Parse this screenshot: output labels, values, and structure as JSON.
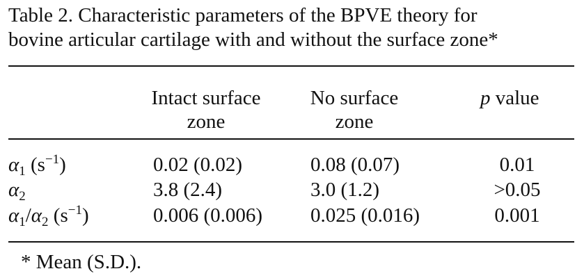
{
  "caption": {
    "line1": "Table 2. Characteristic parameters of the BPVE theory for",
    "line2": "bovine articular cartilage with and without the surface zone*"
  },
  "table": {
    "headers": {
      "intact_line1": "Intact surface",
      "intact_line2": "zone",
      "nosurf_line1": "No surface",
      "nosurf_line2": "zone",
      "p_symbol": "p",
      "p_text": " value"
    },
    "rows": [
      {
        "param_symbol": "α",
        "param_sub": "1",
        "param_unit_open": " (s",
        "param_unit_sup": "−1",
        "param_unit_close": ")",
        "intact": "0.02 (0.02)",
        "no_surface": "0.08 (0.07)",
        "p_value": "0.01"
      },
      {
        "param_symbol": "α",
        "param_sub": "2",
        "intact": "3.8 (2.4)",
        "no_surface": "3.0 (1.2)",
        "p_value": ">0.05"
      },
      {
        "param_symbol": "α",
        "param_sub": "1",
        "param_slash": "/",
        "param_symbol2": "α",
        "param_sub2": "2",
        "param_unit_open": " (s",
        "param_unit_sup": "−1",
        "param_unit_close": ")",
        "intact": "0.006 (0.006)",
        "no_surface": "0.025 (0.016)",
        "p_value": "0.001"
      }
    ]
  },
  "footnote": "* Mean (S.D.)."
}
